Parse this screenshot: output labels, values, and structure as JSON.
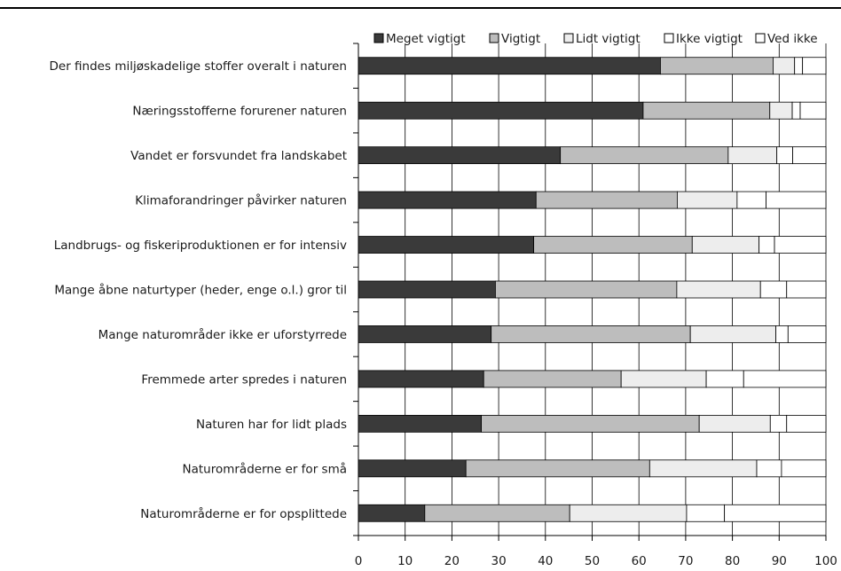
{
  "chart_data": {
    "type": "bar",
    "orientation": "horizontal",
    "stacked": true,
    "categories": [
      "Der findes miljøskadelige stoffer overalt i naturen",
      "Næringsstofferne forurener naturen",
      "Vandet er forsvundet fra landskabet",
      "Klimaforandringer påvirker naturen",
      "Landbrugs- og fiskeriproduktionen er for intensiv",
      "Mange åbne naturtyper (heder, enge o.l.) gror til",
      "Mange naturområder ikke er uforstyrrede",
      "Fremmede arter spredes i naturen",
      "Naturen har for lidt plads",
      "Naturområderne er for små",
      "Naturområderne er for opsplittede"
    ],
    "series": [
      {
        "name": "Meget vigtigt",
        "color": "#3a3a3a",
        "values": [
          64.6,
          60.9,
          43.2,
          38.0,
          37.5,
          29.3,
          28.4,
          26.8,
          26.3,
          23.0,
          14.2
        ]
      },
      {
        "name": "Vigtigt",
        "color": "#bdbdbd",
        "values": [
          24.1,
          27.1,
          35.9,
          30.2,
          33.9,
          38.8,
          42.6,
          29.4,
          46.6,
          39.3,
          31.0
        ]
      },
      {
        "name": "Lidt vigtigt",
        "color": "#ededed",
        "values": [
          4.6,
          4.8,
          10.4,
          12.8,
          14.3,
          17.9,
          18.3,
          18.2,
          15.2,
          22.9,
          25.0
        ]
      },
      {
        "name": "Ikke vigtigt",
        "color": "#ffffff",
        "values": [
          1.7,
          1.7,
          3.4,
          6.2,
          3.3,
          5.6,
          2.6,
          8.0,
          3.5,
          5.3,
          8.1
        ]
      },
      {
        "name": "Ved ikke",
        "color": "#ffffff",
        "values": [
          5.0,
          5.5,
          7.1,
          12.8,
          11.0,
          8.4,
          8.1,
          17.6,
          8.4,
          9.5,
          21.7
        ]
      }
    ],
    "xlim": [
      0,
      100
    ],
    "xticks": [
      0,
      10,
      20,
      30,
      40,
      50,
      60,
      70,
      80,
      90,
      100
    ],
    "grid": "vertical",
    "legend_position": "top-right",
    "title": "",
    "xlabel": "",
    "ylabel": ""
  }
}
